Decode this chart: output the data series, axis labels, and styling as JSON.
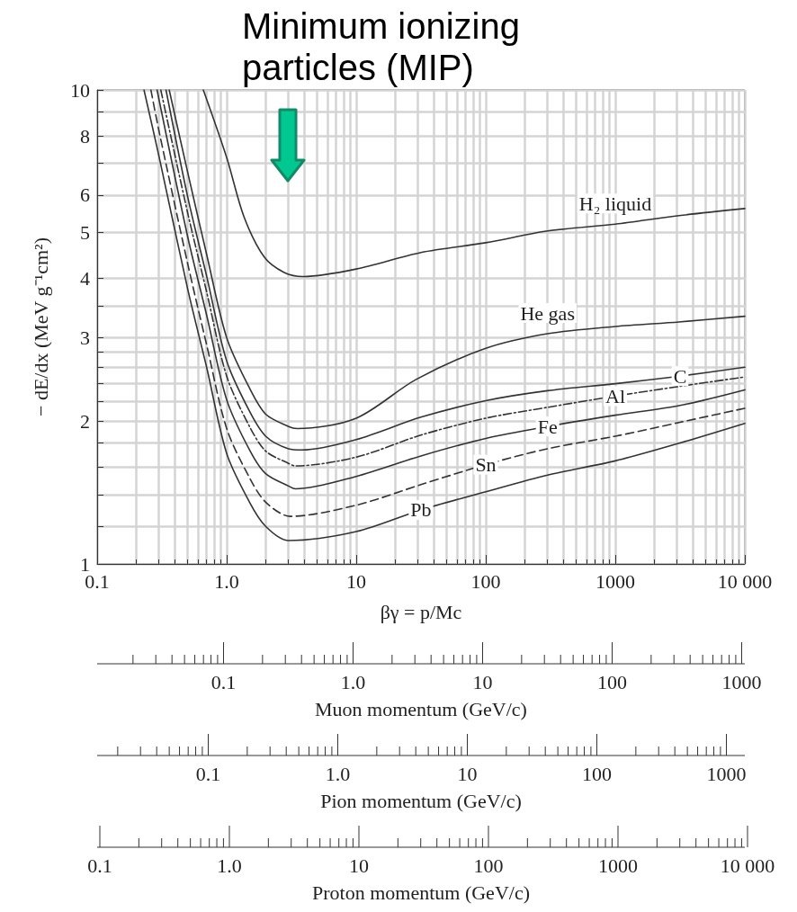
{
  "chart_data": [
    {
      "type": "line",
      "xlabel": "βγ = p/Mc",
      "ylabel": "− dE/dx (MeV g⁻¹cm²)",
      "log": "xy",
      "grid": true,
      "annotations": [
        "Minimum ionizing particles (MIP)"
      ],
      "xlim": [
        0.1,
        10000
      ],
      "ylim": [
        1,
        10
      ],
      "xticks": [
        0.1,
        {
          "value": 0.2,
          "label": null
        },
        {
          "value": 0.3,
          "label": null
        },
        {
          "value": 0.4,
          "label": null
        },
        {
          "value": 0.5,
          "label": null
        },
        {
          "value": 0.6,
          "label": null
        },
        {
          "value": 0.7,
          "label": null
        },
        {
          "value": 0.8,
          "label": null
        },
        {
          "value": 0.9,
          "label": null
        },
        {
          "value": 1,
          "label": "1.0"
        },
        {
          "value": 2,
          "label": null
        },
        {
          "value": 3,
          "label": null
        },
        {
          "value": 4,
          "label": null
        },
        {
          "value": 5,
          "label": null
        },
        {
          "value": 6,
          "label": null
        },
        {
          "value": 7,
          "label": null
        },
        {
          "value": 8,
          "label": null
        },
        {
          "value": 9,
          "label": null
        },
        10,
        {
          "value": 20,
          "label": null
        },
        {
          "value": 30,
          "label": null
        },
        {
          "value": 40,
          "label": null
        },
        {
          "value": 50,
          "label": null
        },
        {
          "value": 60,
          "label": null
        },
        {
          "value": 70,
          "label": null
        },
        {
          "value": 80,
          "label": null
        },
        {
          "value": 90,
          "label": null
        },
        100,
        {
          "value": 200,
          "label": null
        },
        {
          "value": 300,
          "label": null
        },
        {
          "value": 400,
          "label": null
        },
        {
          "value": 500,
          "label": null
        },
        {
          "value": 600,
          "label": null
        },
        {
          "value": 700,
          "label": null
        },
        {
          "value": 800,
          "label": null
        },
        {
          "value": 900,
          "label": null
        },
        1000,
        {
          "value": 2000,
          "label": null
        },
        {
          "value": 3000,
          "label": null
        },
        {
          "value": 4000,
          "label": null
        },
        {
          "value": 5000,
          "label": null
        },
        {
          "value": 6000,
          "label": null
        },
        {
          "value": 7000,
          "label": null
        },
        {
          "value": 8000,
          "label": null
        },
        {
          "value": 9000,
          "label": null
        },
        {
          "value": 10000,
          "label": "10 000"
        }
      ],
      "yticks": [
        1,
        {
          "value": 1.2,
          "label": null
        },
        {
          "value": 1.4,
          "label": null
        },
        {
          "value": 1.6,
          "label": null
        },
        {
          "value": 1.8,
          "label": null
        },
        2,
        {
          "value": 2.2,
          "label": null
        },
        {
          "value": 2.4,
          "label": null
        },
        {
          "value": 2.6,
          "label": null
        },
        {
          "value": 2.8,
          "label": null
        },
        3,
        {
          "value": 3.5,
          "label": null
        },
        4,
        5,
        6,
        {
          "value": 7,
          "label": null
        },
        8,
        {
          "value": 9,
          "label": null
        },
        10
      ],
      "series": [
        {
          "name": "H₂ liquid",
          "color": "#333333",
          "line_style": "solid",
          "x": [
            0.66,
            1,
            1.36,
            1.95,
            2.78,
            3.9,
            10,
            31.6,
            100,
            300,
            1000,
            3100,
            10000
          ],
          "values": [
            10,
            7.2,
            5.4,
            4.44,
            4.12,
            4.04,
            4.19,
            4.54,
            4.76,
            5.04,
            5.21,
            5.43,
            5.62
          ]
        },
        {
          "name": "He gas",
          "color": "#333333",
          "line_style": "solid",
          "x": [
            0.36,
            0.5,
            0.7,
            1,
            1.5,
            2,
            3,
            3.5,
            10,
            29,
            100,
            300,
            1000,
            3100,
            10000
          ],
          "values": [
            10,
            6.7,
            4.5,
            3.0,
            2.35,
            2.07,
            1.95,
            1.93,
            2.03,
            2.45,
            2.85,
            3.06,
            3.17,
            3.24,
            3.33
          ]
        },
        {
          "name": "C",
          "color": "#333333",
          "line_style": "solid",
          "x": [
            0.34,
            0.5,
            0.7,
            1,
            1.5,
            2,
            3,
            3.8,
            10,
            31.6,
            100,
            300,
            1000,
            3162,
            10000
          ],
          "values": [
            10,
            5.95,
            4.05,
            2.68,
            2.1,
            1.86,
            1.75,
            1.74,
            1.83,
            2.04,
            2.21,
            2.32,
            2.4,
            2.49,
            2.6
          ]
        },
        {
          "name": "Al",
          "color": "#333333",
          "line_style": "dashdot",
          "x": [
            0.31,
            0.5,
            0.7,
            1,
            1.5,
            2,
            3,
            3.4,
            10,
            31.6,
            100,
            300,
            1000,
            3162,
            10000
          ],
          "values": [
            10,
            5.5,
            3.75,
            2.49,
            1.95,
            1.73,
            1.63,
            1.61,
            1.68,
            1.87,
            2.03,
            2.14,
            2.26,
            2.37,
            2.48
          ]
        },
        {
          "name": "Fe",
          "color": "#333333",
          "line_style": "solid",
          "x": [
            0.29,
            0.5,
            0.7,
            1,
            1.5,
            2,
            3,
            3.4,
            10,
            31.6,
            100,
            300,
            1000,
            3162,
            10000
          ],
          "values": [
            10,
            4.9,
            3.35,
            2.22,
            1.74,
            1.55,
            1.46,
            1.44,
            1.53,
            1.69,
            1.84,
            1.95,
            2.06,
            2.16,
            2.33
          ]
        },
        {
          "name": "Sn",
          "color": "#333333",
          "line_style": "dashed",
          "x": [
            0.26,
            0.3,
            0.5,
            0.7,
            1,
            1.5,
            2,
            3.1,
            10,
            31.6,
            100,
            300,
            1000,
            3162,
            10000
          ],
          "values": [
            10,
            8.2,
            4.3,
            2.9,
            1.93,
            1.52,
            1.35,
            1.26,
            1.33,
            1.47,
            1.62,
            1.75,
            1.86,
            1.99,
            2.13
          ]
        },
        {
          "name": "Pb",
          "color": "#333333",
          "line_style": "solid",
          "x": [
            0.23,
            0.3,
            0.5,
            0.7,
            1,
            1.5,
            2,
            3,
            10,
            31.6,
            100,
            300,
            1000,
            3162,
            10000
          ],
          "values": [
            10,
            7.25,
            3.8,
            2.6,
            1.71,
            1.35,
            1.2,
            1.12,
            1.17,
            1.3,
            1.42,
            1.54,
            1.65,
            1.8,
            1.98
          ]
        }
      ]
    },
    {
      "type": "other",
      "xlabel": "Muon momentum (GeV/c)",
      "annotations": [
        "0.1",
        "1.0",
        "10",
        "100",
        "1000"
      ]
    },
    {
      "type": "other",
      "xlabel": "Pion momentum (GeV/c)",
      "annotations": [
        "0.1",
        "1.0",
        "10",
        "100",
        "1000"
      ]
    },
    {
      "type": "other",
      "xlabel": "Proton momentum (GeV/c)",
      "annotations": [
        "0.1",
        "1.0",
        "10",
        "100",
        "1000",
        "10 000"
      ]
    }
  ]
}
